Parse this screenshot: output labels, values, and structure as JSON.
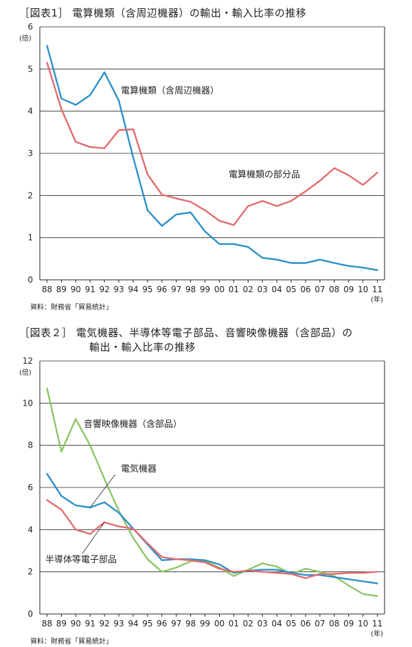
{
  "chart_data": [
    {
      "type": "line",
      "title": "［図表1］ 電算機類（含周辺機器）の輸出・輸入比率の推移",
      "source": "資料：財務省「貿易統計」",
      "y_unit": "(倍)",
      "x_unit": "(年)",
      "ylim": [
        0,
        6
      ],
      "yticks": [
        "0",
        "1",
        "2",
        "3",
        "4",
        "5",
        "6"
      ],
      "grid": true,
      "categories": [
        "88",
        "89",
        "90",
        "91",
        "92",
        "93",
        "94",
        "95",
        "96",
        "97",
        "98",
        "99",
        "00",
        "01",
        "02",
        "03",
        "04",
        "05",
        "06",
        "07",
        "08",
        "09",
        "10",
        "11"
      ],
      "series": [
        {
          "name": "電算機類（含周辺機器）",
          "color": "#2b8fc9",
          "values": [
            5.55,
            4.3,
            4.15,
            4.38,
            4.92,
            4.25,
            2.9,
            1.65,
            1.28,
            1.55,
            1.6,
            1.15,
            0.85,
            0.85,
            0.78,
            0.52,
            0.48,
            0.4,
            0.4,
            0.48,
            0.4,
            0.33,
            0.29,
            0.23
          ]
        },
        {
          "name": "電算機類の部分品",
          "color": "#e36a6e",
          "values": [
            5.15,
            4.05,
            3.27,
            3.15,
            3.12,
            3.55,
            3.57,
            2.5,
            2.02,
            1.93,
            1.85,
            1.65,
            1.4,
            1.3,
            1.75,
            1.87,
            1.75,
            1.87,
            2.1,
            2.35,
            2.65,
            2.48,
            2.25,
            2.54
          ]
        }
      ]
    },
    {
      "type": "line",
      "title": "［図表２］ 電気機器、半導体等電子部品、音響映像機器（含部品）の",
      "title_line2": "輸出・輸入比率の推移",
      "source": "資料：財務省「貿易統計」",
      "y_unit": "(倍)",
      "x_unit": "(年)",
      "ylim": [
        0,
        12
      ],
      "yticks": [
        "0",
        "2",
        "4",
        "6",
        "8",
        "10",
        "12"
      ],
      "grid": true,
      "categories": [
        "88",
        "89",
        "90",
        "91",
        "92",
        "93",
        "94",
        "95",
        "96",
        "97",
        "98",
        "99",
        "00",
        "01",
        "02",
        "03",
        "04",
        "05",
        "06",
        "07",
        "08",
        "09",
        "10",
        "11"
      ],
      "series": [
        {
          "name": "音響映像機器（含部品）",
          "color": "#8cc665",
          "values": [
            10.7,
            7.7,
            9.25,
            8.0,
            6.4,
            4.9,
            3.6,
            2.6,
            2.0,
            2.2,
            2.5,
            2.5,
            2.2,
            1.8,
            2.1,
            2.4,
            2.25,
            1.9,
            2.15,
            2.0,
            1.8,
            1.35,
            0.95,
            0.85
          ]
        },
        {
          "name": "電気機器",
          "color": "#2b8fc9",
          "values": [
            6.65,
            5.6,
            5.15,
            5.05,
            5.3,
            4.8,
            4.05,
            3.3,
            2.55,
            2.6,
            2.6,
            2.55,
            2.35,
            1.95,
            2.05,
            2.1,
            2.1,
            1.95,
            1.85,
            1.85,
            1.75,
            1.65,
            1.55,
            1.45
          ]
        },
        {
          "name": "半導体等電子部品",
          "color": "#e36a6e",
          "values": [
            5.4,
            4.95,
            4.0,
            3.8,
            4.35,
            4.15,
            4.05,
            3.35,
            2.7,
            2.6,
            2.55,
            2.45,
            2.15,
            2.0,
            2.05,
            2.0,
            1.95,
            1.9,
            1.7,
            1.9,
            1.9,
            1.95,
            1.95,
            2.0
          ]
        }
      ]
    }
  ]
}
